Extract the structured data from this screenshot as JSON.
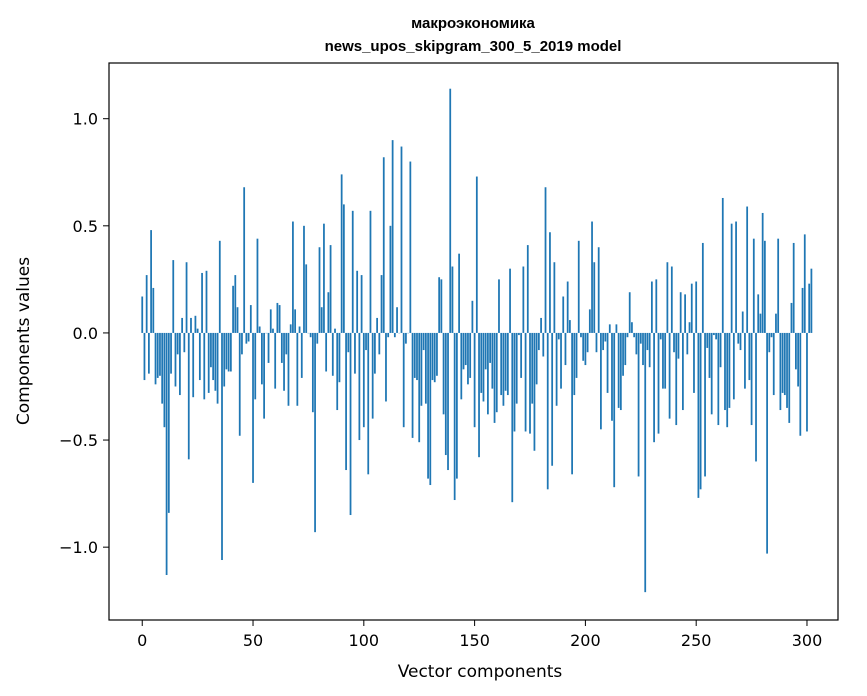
{
  "chart_data": {
    "type": "bar",
    "title": "макроэкономика",
    "subtitle": "news_upos_skipgram_300_5_2019 model",
    "xlabel": "Vector components",
    "ylabel": "Components values",
    "xlim": [
      -15,
      314
    ],
    "ylim": [
      -1.34,
      1.26
    ],
    "xticks": [
      0,
      50,
      100,
      150,
      200,
      250,
      300
    ],
    "xtick_labels": [
      "0",
      "50",
      "100",
      "150",
      "200",
      "250",
      "300"
    ],
    "yticks": [
      -1.0,
      -0.5,
      0.0,
      0.5,
      1.0
    ],
    "ytick_labels": [
      "−1.0",
      "−0.5",
      "0.0",
      "0.5",
      "1.0"
    ],
    "grid": false,
    "bar_color": "#1f77b4",
    "series": [
      {
        "name": "макроэкономика",
        "x_start": 0,
        "values": [
          0.17,
          -0.22,
          0.27,
          -0.19,
          0.48,
          0.21,
          -0.24,
          -0.21,
          -0.2,
          -0.33,
          -0.44,
          -1.13,
          -0.84,
          -0.19,
          0.34,
          -0.25,
          -0.1,
          -0.29,
          0.07,
          -0.09,
          0.33,
          -0.59,
          0.07,
          -0.3,
          0.08,
          0.02,
          -0.22,
          0.28,
          -0.31,
          0.29,
          -0.28,
          -0.16,
          -0.22,
          -0.27,
          -0.33,
          0.43,
          -1.06,
          -0.25,
          -0.17,
          -0.18,
          -0.18,
          0.22,
          0.27,
          0.12,
          -0.48,
          -0.1,
          0.68,
          -0.05,
          -0.04,
          0.13,
          -0.7,
          -0.31,
          0.44,
          0.03,
          -0.24,
          -0.4,
          0.0,
          -0.14,
          0.11,
          0.02,
          -0.26,
          0.14,
          0.13,
          -0.14,
          -0.27,
          -0.1,
          -0.34,
          0.04,
          0.52,
          0.11,
          -0.34,
          0.03,
          -0.21,
          0.5,
          0.32,
          0.0,
          -0.02,
          -0.37,
          -0.93,
          -0.05,
          0.4,
          0.12,
          0.51,
          -0.18,
          0.19,
          0.41,
          -0.2,
          0.02,
          -0.36,
          -0.23,
          0.74,
          0.6,
          -0.64,
          -0.09,
          -0.85,
          0.57,
          -0.19,
          0.29,
          -0.5,
          0.27,
          -0.44,
          -0.08,
          -0.66,
          0.57,
          -0.4,
          -0.19,
          0.07,
          -0.1,
          0.27,
          0.82,
          -0.32,
          -0.02,
          0.5,
          0.9,
          -0.02,
          0.12,
          0.0,
          0.87,
          -0.44,
          -0.05,
          0.0,
          0.8,
          -0.49,
          -0.21,
          -0.22,
          -0.51,
          -0.34,
          -0.08,
          -0.33,
          -0.68,
          -0.71,
          -0.22,
          -0.23,
          -0.2,
          0.26,
          0.25,
          -0.38,
          -0.57,
          -0.64,
          1.14,
          0.31,
          -0.78,
          -0.68,
          0.37,
          -0.31,
          -0.17,
          -0.15,
          -0.24,
          -0.21,
          0.15,
          -0.44,
          0.73,
          -0.58,
          -0.28,
          -0.32,
          -0.17,
          -0.38,
          -0.14,
          -0.26,
          -0.42,
          -0.37,
          0.25,
          -0.29,
          -0.34,
          -0.27,
          -0.29,
          0.3,
          -0.79,
          -0.46,
          -0.33,
          -0.01,
          -0.21,
          0.31,
          -0.46,
          0.41,
          -0.47,
          -0.33,
          -0.55,
          -0.24,
          -0.08,
          0.07,
          -0.11,
          0.68,
          -0.73,
          0.47,
          -0.62,
          0.33,
          -0.34,
          -0.03,
          -0.26,
          0.17,
          -0.15,
          0.24,
          0.06,
          -0.66,
          -0.29,
          -0.21,
          0.43,
          -0.02,
          -0.13,
          -0.15,
          -0.09,
          0.11,
          0.52,
          0.33,
          -0.09,
          0.4,
          -0.45,
          -0.08,
          -0.04,
          -0.28,
          0.04,
          -0.41,
          -0.72,
          0.04,
          -0.35,
          -0.36,
          -0.2,
          -0.15,
          -0.02,
          0.19,
          0.05,
          -0.02,
          -0.1,
          -0.67,
          -0.05,
          -0.15,
          -1.21,
          -0.08,
          -0.16,
          0.24,
          -0.51,
          0.25,
          -0.47,
          -0.03,
          -0.26,
          -0.26,
          0.33,
          -0.4,
          0.31,
          -0.09,
          -0.43,
          -0.12,
          0.19,
          -0.36,
          0.18,
          -0.1,
          0.05,
          0.23,
          -0.28,
          0.24,
          -0.77,
          -0.73,
          0.42,
          -0.67,
          -0.07,
          -0.21,
          -0.38,
          -0.01,
          -0.03,
          -0.43,
          -0.16,
          0.63,
          -0.36,
          -0.44,
          -0.35,
          0.51,
          -0.31,
          0.52,
          -0.05,
          -0.08,
          0.1,
          -0.26,
          0.59,
          -0.22,
          -0.43,
          0.44,
          -0.6,
          0.18,
          0.09,
          0.56,
          0.43,
          -1.03,
          -0.09,
          -0.02,
          -0.29,
          0.09,
          0.44,
          -0.36,
          -0.28,
          -0.29,
          -0.35,
          -0.42,
          0.14,
          0.42,
          -0.17,
          -0.25,
          -0.48,
          0.21,
          0.46,
          -0.46,
          0.23,
          0.3
        ]
      }
    ]
  }
}
